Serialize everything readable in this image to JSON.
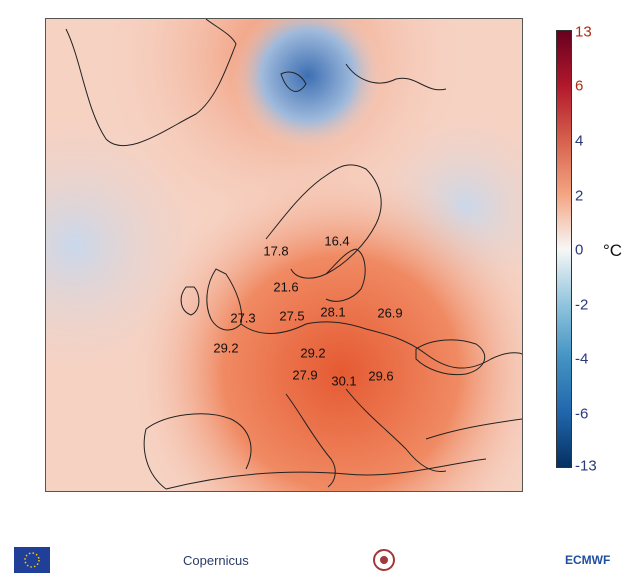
{
  "map": {
    "values": [
      "17.8",
      "16.4",
      "21.6",
      "27.3",
      "27.5",
      "28.1",
      "26.9",
      "29.2",
      "29.2",
      "27.9",
      "30.1",
      "29.6"
    ],
    "colors": {
      "warm": "#e8643c",
      "cool": "#4f7fbf",
      "neutral": "#f6d2c3"
    }
  },
  "colorbar": {
    "ticks": [
      "13",
      "6",
      "4",
      "2",
      "0",
      "-2",
      "-4",
      "-6",
      "-13"
    ],
    "unit": "°C",
    "colors": [
      "#67001f",
      "#b2182b",
      "#d6604d",
      "#f4a582",
      "#f7f7f7",
      "#92c5de",
      "#4393c3",
      "#2166ac",
      "#053061"
    ]
  },
  "logos": {
    "copernicus": "Copernicus",
    "ecmwf": "ECMWF"
  }
}
